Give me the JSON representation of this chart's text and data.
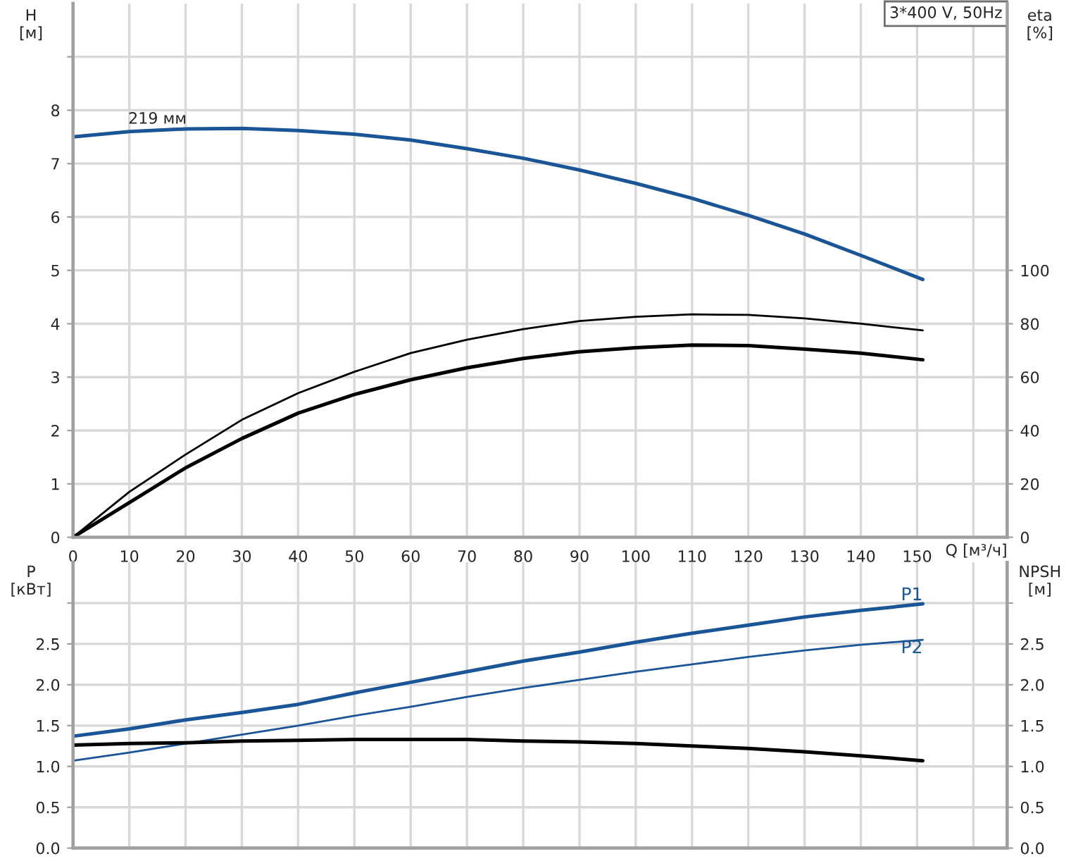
{
  "chart_data": [
    {
      "type": "line",
      "title": "3*400 V, 50Hz",
      "xlabel": "Q [м³/ч]",
      "ylabel": "H\n[м]",
      "y2label": "eta\n[%]",
      "x": [
        0,
        10,
        20,
        30,
        40,
        50,
        60,
        70,
        80,
        90,
        100,
        110,
        120,
        130,
        140,
        151
      ],
      "series": [
        {
          "color": "#1a5597",
          "values": [
            7.5,
            7.6,
            7.65,
            7.66,
            7.62,
            7.55,
            7.44,
            7.28,
            7.1,
            6.88,
            6.63,
            6.35,
            6.03,
            5.68,
            5.28,
            4.83
          ]
        },
        {
          "color": "#000000",
          "axis": "y2",
          "values": [
            0,
            17,
            31,
            44,
            54,
            62,
            69,
            74,
            78,
            81,
            82.6,
            83.5,
            83.3,
            82,
            80,
            77.5
          ]
        },
        {
          "color": "#000000",
          "axis": "y2",
          "values": [
            0,
            13,
            26,
            37,
            46.5,
            53.5,
            59,
            63.5,
            67,
            69.5,
            71,
            72,
            71.8,
            70.5,
            69,
            66.5
          ]
        }
      ],
      "annotations": [
        {
          "text": "219 мм",
          "x": 15,
          "y": 7.65
        }
      ],
      "xlim": [
        0,
        166
      ],
      "xticks": [
        0,
        10,
        20,
        30,
        40,
        50,
        60,
        70,
        80,
        90,
        100,
        110,
        120,
        130,
        140,
        150,
        {
          "value": 160,
          "label": null
        }
      ],
      "ylim": [
        0,
        10
      ],
      "yticks": [
        0,
        1,
        2,
        3,
        4,
        5,
        6,
        7,
        8,
        {
          "value": 9,
          "label": null
        }
      ],
      "y2lim": [
        0,
        200
      ],
      "y2ticks": [
        0,
        20,
        40,
        60,
        80,
        100
      ],
      "grid": true,
      "legend": false
    },
    {
      "type": "line",
      "ylabel": "P\n[кВт]",
      "y2label": "NPSH\n[м]",
      "x": [
        0,
        10,
        20,
        30,
        40,
        50,
        60,
        70,
        80,
        90,
        100,
        110,
        120,
        130,
        140,
        151
      ],
      "series": [
        {
          "name": "P1",
          "color": "#1a5597",
          "values": [
            1.37,
            1.46,
            1.57,
            1.66,
            1.76,
            1.9,
            2.03,
            2.16,
            2.29,
            2.4,
            2.52,
            2.63,
            2.73,
            2.83,
            2.91,
            2.99
          ]
        },
        {
          "name": "P2",
          "color": "#1a5597",
          "values": [
            1.07,
            1.17,
            1.28,
            1.39,
            1.5,
            1.62,
            1.73,
            1.85,
            1.96,
            2.06,
            2.16,
            2.25,
            2.34,
            2.42,
            2.49,
            2.55
          ]
        },
        {
          "color": "#000000",
          "axis": "y2",
          "values": [
            1.26,
            1.28,
            1.29,
            1.31,
            1.32,
            1.33,
            1.33,
            1.33,
            1.31,
            1.3,
            1.28,
            1.25,
            1.22,
            1.18,
            1.13,
            1.07
          ]
        }
      ],
      "xlim": [
        0,
        166
      ],
      "xticks": [
        0,
        10,
        20,
        30,
        40,
        50,
        60,
        70,
        80,
        90,
        100,
        110,
        120,
        130,
        140,
        150,
        160
      ],
      "ylim": [
        0,
        3.5
      ],
      "yticks": [
        {
          "value": 0,
          "label": "0.0"
        },
        0.5,
        {
          "value": 1,
          "label": "1.0"
        },
        1.5,
        {
          "value": 2,
          "label": "2.0"
        },
        2.5,
        {
          "value": 3,
          "label": null
        }
      ],
      "y2lim": [
        0,
        3.5
      ],
      "y2ticks": [
        {
          "value": 0,
          "label": "0.0"
        },
        0.5,
        {
          "value": 1,
          "label": "1.0"
        },
        1.5,
        {
          "value": 2,
          "label": "2.0"
        },
        2.5,
        {
          "value": 3,
          "label": null
        }
      ],
      "grid": true,
      "legend": false,
      "tick_labels": "y"
    }
  ]
}
